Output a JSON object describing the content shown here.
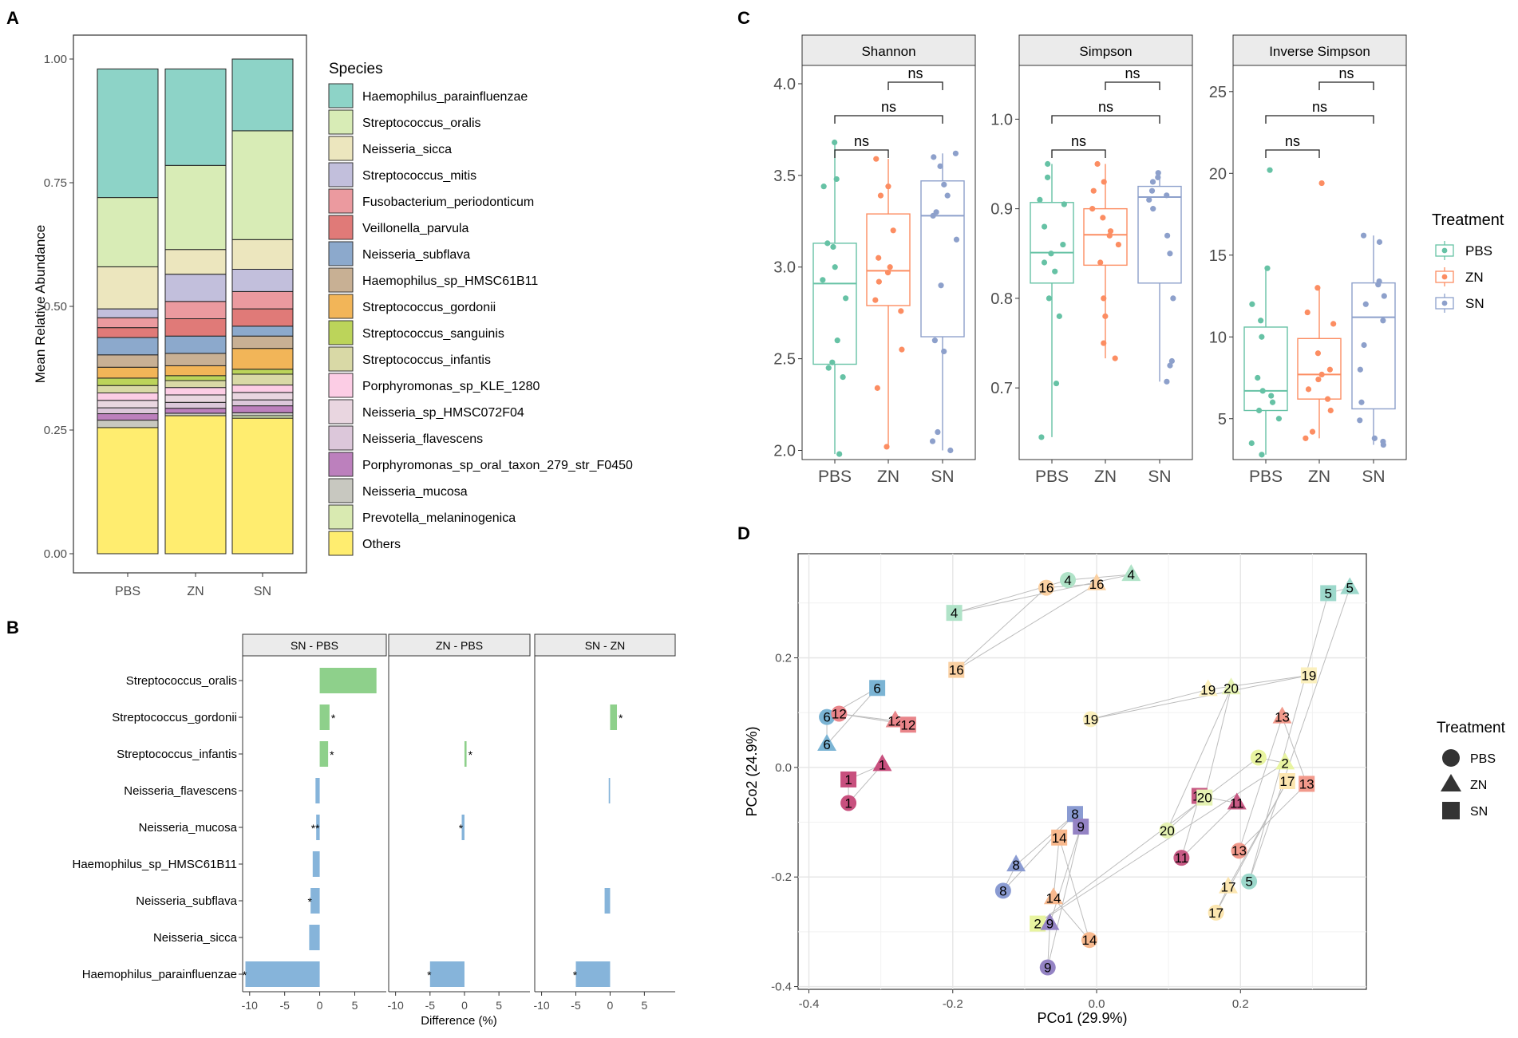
{
  "panel_letters": {
    "a": "A",
    "b": "B",
    "c": "C",
    "d": "D"
  },
  "colors": {
    "PBS": "#66C2A5",
    "ZN": "#FC8D62",
    "SN": "#8DA0CB",
    "pos_bar": "#8ED08B",
    "neg_bar": "#86B4DA",
    "strip_fill": "#EBEBEB",
    "grid": "#E6E6E6",
    "segment": "#BDBDBD"
  },
  "chart_data": [
    {
      "id": "A",
      "type": "bar",
      "subtype": "stacked",
      "title": "",
      "xlabel": "",
      "ylabel": "Mean Relative Abundance",
      "ylim": [
        0,
        1
      ],
      "yticks": [
        "0.00",
        "0.25",
        "0.50",
        "0.75",
        "1.00"
      ],
      "categories": [
        "PBS",
        "ZN",
        "SN"
      ],
      "legend_title": "Species",
      "series": [
        {
          "name": "Others",
          "color": "#FFED6F",
          "values": [
            0.255,
            0.279,
            0.274
          ]
        },
        {
          "name": "Prevotella_melaninogenica",
          "color": "#D9EAB1",
          "values": [
            0.0,
            0.0,
            0.005
          ]
        },
        {
          "name": "Neisseria_mucosa",
          "color": "#C8C8C0",
          "values": [
            0.015,
            0.005,
            0.006
          ]
        },
        {
          "name": "Porphyromonas_sp_oral_taxon_279_str_F0450",
          "color": "#BC80BD",
          "values": [
            0.013,
            0.01,
            0.014
          ]
        },
        {
          "name": "Neisseria_flavescens",
          "color": "#DCC7DA",
          "values": [
            0.012,
            0.012,
            0.012
          ]
        },
        {
          "name": "Neisseria_sp_HMSC072F04",
          "color": "#E9D6E0",
          "values": [
            0.015,
            0.015,
            0.015
          ]
        },
        {
          "name": "Porphyromonas_sp_KLE_1280",
          "color": "#FCCDE5",
          "values": [
            0.015,
            0.015,
            0.015
          ]
        },
        {
          "name": "Streptococcus_infantis",
          "color": "#D9D9A6",
          "values": [
            0.015,
            0.014,
            0.022
          ]
        },
        {
          "name": "Streptococcus_sanguinis",
          "color": "#BCD45A",
          "values": [
            0.015,
            0.01,
            0.01
          ]
        },
        {
          "name": "Streptococcus_gordonii",
          "color": "#F2B558",
          "values": [
            0.022,
            0.02,
            0.042
          ]
        },
        {
          "name": "Haemophilus_sp_HMSC61B11",
          "color": "#C8B094",
          "values": [
            0.025,
            0.025,
            0.025
          ]
        },
        {
          "name": "Neisseria_subflava",
          "color": "#8CA9CC",
          "values": [
            0.035,
            0.035,
            0.02
          ]
        },
        {
          "name": "Veillonella_parvula",
          "color": "#E07A78",
          "values": [
            0.02,
            0.035,
            0.035
          ]
        },
        {
          "name": "Fusobacterium_periodonticum",
          "color": "#EB9A9F",
          "values": [
            0.02,
            0.035,
            0.035
          ]
        },
        {
          "name": "Streptococcus_mitis",
          "color": "#C2BFDC",
          "values": [
            0.018,
            0.055,
            0.045
          ]
        },
        {
          "name": "Neisseria_sicca",
          "color": "#ECE6BE",
          "values": [
            0.085,
            0.05,
            0.06
          ]
        },
        {
          "name": "Streptococcus_oralis",
          "color": "#D8ECB6",
          "values": [
            0.14,
            0.17,
            0.22
          ]
        },
        {
          "name": "Haemophilus_parainfluenzae",
          "color": "#8DD3C7",
          "values": [
            0.26,
            0.195,
            0.145
          ]
        }
      ],
      "legend_order": [
        "Haemophilus_parainfluenzae",
        "Streptococcus_oralis",
        "Neisseria_sicca",
        "Streptococcus_mitis",
        "Fusobacterium_periodonticum",
        "Veillonella_parvula",
        "Neisseria_subflava",
        "Haemophilus_sp_HMSC61B11",
        "Streptococcus_gordonii",
        "Streptococcus_sanguinis",
        "Streptococcus_infantis",
        "Porphyromonas_sp_KLE_1280",
        "Neisseria_sp_HMSC072F04",
        "Neisseria_flavescens",
        "Porphyromonas_sp_oral_taxon_279_str_F0450",
        "Neisseria_mucosa",
        "Prevotella_melaninogenica",
        "Others"
      ]
    },
    {
      "id": "B",
      "type": "bar",
      "subtype": "horizontal-faceted",
      "xlabel": "Difference (%)",
      "ylabel": "",
      "xlim": [
        -11,
        9.5
      ],
      "xticks": [
        -10,
        -5,
        0,
        5
      ],
      "categories": [
        "Streptococcus_oralis",
        "Streptococcus_gordonii",
        "Streptococcus_infantis",
        "Neisseria_flavescens",
        "Neisseria_mucosa",
        "Haemophilus_sp_HMSC61B11",
        "Neisseria_subflava",
        "Neisseria_sicca",
        "Haemophilus_parainfluenzae"
      ],
      "facets": [
        {
          "title": "SN - PBS",
          "values": [
            8.1,
            1.4,
            1.2,
            -0.6,
            -0.5,
            -1.0,
            -1.3,
            -1.5,
            -10.6
          ],
          "labels": [
            "",
            "*",
            "*",
            "",
            "**",
            "",
            "*",
            "",
            "*"
          ]
        },
        {
          "title": "ZN - PBS",
          "values": [
            0,
            0,
            0.3,
            0,
            -0.4,
            0,
            0,
            0,
            -5.0
          ],
          "labels": [
            "",
            "",
            "*",
            "",
            "*",
            "",
            "",
            "",
            "*"
          ]
        },
        {
          "title": "SN - ZN",
          "values": [
            0,
            1.0,
            0,
            -0.2,
            0,
            0,
            -0.8,
            0,
            -5.0
          ],
          "labels": [
            "",
            "*",
            "",
            "",
            "",
            "",
            "",
            "",
            "*"
          ]
        }
      ]
    },
    {
      "id": "C",
      "type": "boxplot",
      "xlabel": "",
      "ylabel": "",
      "legend_title": "Treatment",
      "legend": [
        "PBS",
        "ZN",
        "SN"
      ],
      "groups": [
        "PBS",
        "ZN",
        "SN"
      ],
      "facets": [
        {
          "title": "Shannon",
          "ylim": [
            1.95,
            4.1
          ],
          "yticks": [
            "2.0",
            "2.5",
            "3.0",
            "3.5",
            "4.0"
          ],
          "boxes": [
            {
              "group": "PBS",
              "min": 1.98,
              "q1": 2.47,
              "median": 2.91,
              "q3": 3.13,
              "max": 3.68,
              "points": [
                3.68,
                3.48,
                3.44,
                3.13,
                3.11,
                3.0,
                2.93,
                2.83,
                2.6,
                2.48,
                2.45,
                2.4,
                1.98
              ]
            },
            {
              "group": "ZN",
              "min": 2.02,
              "q1": 2.79,
              "median": 2.98,
              "q3": 3.29,
              "max": 3.59,
              "points": [
                3.59,
                3.44,
                3.39,
                3.2,
                3.05,
                3.0,
                2.97,
                2.92,
                2.82,
                2.76,
                2.55,
                2.34,
                2.02
              ]
            },
            {
              "group": "SN",
              "min": 2.0,
              "q1": 2.62,
              "median": 3.28,
              "q3": 3.47,
              "max": 3.62,
              "points": [
                3.62,
                3.6,
                3.55,
                3.45,
                3.39,
                3.3,
                3.28,
                3.15,
                2.9,
                2.6,
                2.54,
                2.1,
                2.05,
                2.0
              ]
            }
          ],
          "comparisons": [
            {
              "from": "PBS",
              "to": "ZN",
              "label": "ns"
            },
            {
              "from": "PBS",
              "to": "SN",
              "label": "ns"
            },
            {
              "from": "ZN",
              "to": "SN",
              "label": "ns"
            }
          ]
        },
        {
          "title": "Simpson",
          "ylim": [
            0.62,
            1.06
          ],
          "yticks": [
            "0.7",
            "0.8",
            "0.9",
            "1.0"
          ],
          "boxes": [
            {
              "group": "PBS",
              "min": 0.645,
              "q1": 0.817,
              "median": 0.851,
              "q3": 0.907,
              "max": 0.95,
              "points": [
                0.95,
                0.935,
                0.91,
                0.905,
                0.88,
                0.86,
                0.85,
                0.84,
                0.83,
                0.8,
                0.78,
                0.705,
                0.645
              ]
            },
            {
              "group": "ZN",
              "min": 0.733,
              "q1": 0.837,
              "median": 0.871,
              "q3": 0.9,
              "max": 0.95,
              "points": [
                0.95,
                0.93,
                0.92,
                0.9,
                0.89,
                0.875,
                0.87,
                0.86,
                0.84,
                0.8,
                0.78,
                0.75,
                0.733
              ]
            },
            {
              "group": "SN",
              "min": 0.707,
              "q1": 0.817,
              "median": 0.913,
              "q3": 0.925,
              "max": 0.94,
              "points": [
                0.94,
                0.935,
                0.93,
                0.92,
                0.915,
                0.91,
                0.9,
                0.87,
                0.85,
                0.8,
                0.73,
                0.725,
                0.707
              ]
            }
          ],
          "comparisons": [
            {
              "from": "PBS",
              "to": "ZN",
              "label": "ns"
            },
            {
              "from": "PBS",
              "to": "SN",
              "label": "ns"
            },
            {
              "from": "ZN",
              "to": "SN",
              "label": "ns"
            }
          ]
        },
        {
          "title": "Inverse Simpson",
          "ylim": [
            2.5,
            26.6
          ],
          "yticks": [
            "5",
            "10",
            "15",
            "20",
            "25"
          ],
          "boxes": [
            {
              "group": "PBS",
              "min": 2.8,
              "q1": 5.5,
              "median": 6.7,
              "q3": 10.6,
              "max": 14.2,
              "points": [
                20.2,
                14.2,
                12.0,
                11.0,
                10.0,
                7.5,
                6.7,
                6.4,
                6.0,
                5.5,
                5.0,
                3.5,
                2.8
              ]
            },
            {
              "group": "ZN",
              "min": 3.8,
              "q1": 6.2,
              "median": 7.7,
              "q3": 9.9,
              "max": 13.0,
              "points": [
                19.4,
                13.0,
                11.5,
                10.8,
                9.0,
                8.0,
                7.7,
                7.4,
                6.8,
                6.2,
                5.5,
                4.2,
                3.8
              ]
            },
            {
              "group": "SN",
              "min": 3.4,
              "q1": 5.6,
              "median": 11.2,
              "q3": 13.3,
              "max": 16.2,
              "points": [
                16.2,
                15.8,
                13.4,
                13.2,
                12.5,
                12.0,
                11.0,
                9.5,
                8.0,
                6.0,
                4.9,
                3.8,
                3.6,
                3.4
              ]
            }
          ],
          "comparisons": [
            {
              "from": "PBS",
              "to": "ZN",
              "label": "ns"
            },
            {
              "from": "PBS",
              "to": "SN",
              "label": "ns"
            },
            {
              "from": "ZN",
              "to": "SN",
              "label": "ns"
            }
          ]
        }
      ]
    },
    {
      "id": "D",
      "type": "scatter",
      "xlabel": "PCo1 (29.9%)",
      "ylabel": "PCo2 (24.9%)",
      "xlim": [
        -0.415,
        0.375
      ],
      "ylim": [
        -0.405,
        0.39
      ],
      "xticks": [
        "-0.4",
        "-0.2",
        "0.0",
        "0.2"
      ],
      "yticks": [
        "-0.4",
        "-0.2",
        "0.0",
        "0.2"
      ],
      "legend_title": "Treatment",
      "legend": [
        {
          "label": "PBS",
          "shape": "circle"
        },
        {
          "label": "ZN",
          "shape": "triangle"
        },
        {
          "label": "SN",
          "shape": "square"
        }
      ],
      "subjects": [
        {
          "id": "1",
          "color": "#C8507E",
          "PBS": [
            -0.345,
            -0.065
          ],
          "ZN": [
            -0.298,
            0.005
          ],
          "SN": [
            -0.345,
            -0.022
          ]
        },
        {
          "id": "2",
          "color": "#E8F4A0",
          "PBS": [
            0.225,
            0.018
          ],
          "ZN": [
            0.262,
            0.008
          ],
          "SN": [
            -0.082,
            -0.285
          ]
        },
        {
          "id": "4",
          "color": "#B0E3C8",
          "PBS": [
            -0.04,
            0.342
          ],
          "ZN": [
            0.048,
            0.352
          ],
          "SN": [
            -0.198,
            0.282
          ]
        },
        {
          "id": "5",
          "color": "#9CD8CB",
          "PBS": [
            0.212,
            -0.208
          ],
          "ZN": [
            0.352,
            0.328
          ],
          "SN": [
            0.322,
            0.318
          ]
        },
        {
          "id": "6",
          "color": "#7BB4D4",
          "PBS": [
            -0.375,
            0.092
          ],
          "ZN": [
            -0.375,
            0.042
          ],
          "SN": [
            -0.305,
            0.145
          ]
        },
        {
          "id": "8",
          "color": "#8A9BD2",
          "PBS": [
            -0.13,
            -0.225
          ],
          "ZN": [
            -0.112,
            -0.178
          ],
          "SN": [
            -0.03,
            -0.085
          ]
        },
        {
          "id": "9",
          "color": "#9483C4",
          "PBS": [
            -0.068,
            -0.365
          ],
          "ZN": [
            -0.065,
            -0.285
          ],
          "SN": [
            -0.022,
            -0.108
          ]
        },
        {
          "id": "11",
          "color": "#C75A84",
          "PBS": [
            0.118,
            -0.165
          ],
          "ZN": [
            0.195,
            -0.065
          ],
          "SN": [
            0.143,
            -0.052
          ]
        },
        {
          "id": "12",
          "color": "#E9858A",
          "PBS": [
            -0.358,
            0.098
          ],
          "ZN": [
            -0.28,
            0.085
          ],
          "SN": [
            -0.262,
            0.078
          ]
        },
        {
          "id": "13",
          "color": "#F29A8C",
          "PBS": [
            0.198,
            -0.152
          ],
          "ZN": [
            0.258,
            0.092
          ],
          "SN": [
            0.292,
            -0.03
          ]
        },
        {
          "id": "14",
          "color": "#F8B98E",
          "PBS": [
            -0.01,
            -0.315
          ],
          "ZN": [
            -0.06,
            -0.238
          ],
          "SN": [
            -0.052,
            -0.128
          ]
        },
        {
          "id": "16",
          "color": "#FAD0A2",
          "PBS": [
            -0.07,
            0.328
          ],
          "ZN": [
            0.0,
            0.335
          ],
          "SN": [
            -0.195,
            0.178
          ]
        },
        {
          "id": "17",
          "color": "#FCE6B0",
          "PBS": [
            0.166,
            -0.265
          ],
          "ZN": [
            0.183,
            -0.218
          ],
          "SN": [
            0.265,
            -0.025
          ]
        },
        {
          "id": "19",
          "color": "#FBF0BE",
          "PBS": [
            -0.008,
            0.088
          ],
          "ZN": [
            0.155,
            0.142
          ],
          "SN": [
            0.295,
            0.168
          ]
        },
        {
          "id": "20",
          "color": "#E6F3B4",
          "PBS": [
            0.098,
            -0.115
          ],
          "ZN": [
            0.187,
            0.145
          ],
          "SN": [
            0.15,
            -0.055
          ]
        }
      ]
    }
  ]
}
